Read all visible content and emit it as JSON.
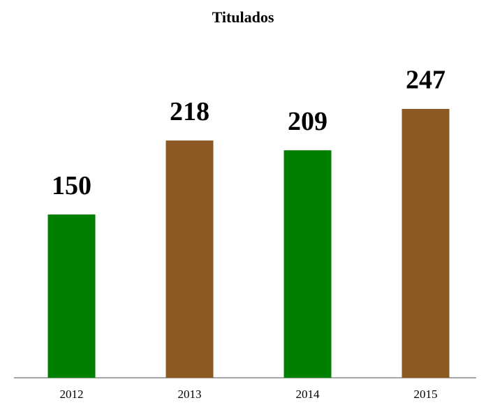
{
  "chart_data": {
    "type": "bar",
    "title": "Titulados",
    "categories": [
      "2012",
      "2013",
      "2014",
      "2015"
    ],
    "values": [
      150,
      218,
      209,
      247
    ],
    "colors": [
      "#008000",
      "#8b5a22",
      "#008000",
      "#8b5a22"
    ]
  }
}
